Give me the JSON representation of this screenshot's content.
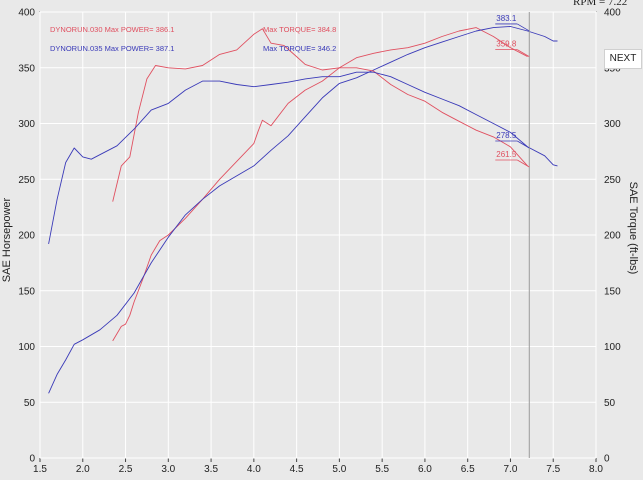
{
  "top_bar": {
    "rpm_readout": "RPM = 7.22"
  },
  "controls": {
    "next_label": "NEXT"
  },
  "colors": {
    "run030": "#e05060",
    "run035": "#3a3ab8",
    "grid": "#ffffff",
    "cursor": "#9a9a9a",
    "background": "#e9e9e9"
  },
  "chart_data": {
    "type": "line",
    "xlabel": "",
    "ylabel_left": "SAE Horsepower",
    "ylabel_right": "SAE Torque (ft-lbs)",
    "xlim": [
      1.5,
      8.0
    ],
    "ylim": [
      0,
      400
    ],
    "x_ticks": [
      "1.5",
      "2.0",
      "2.5",
      "3.0",
      "3.5",
      "4.0",
      "4.5",
      "5.0",
      "5.5",
      "6.0",
      "6.5",
      "7.0",
      "7.5",
      "8.0"
    ],
    "y_ticks_left": [
      "0",
      "50",
      "100",
      "150",
      "200",
      "250",
      "300",
      "350",
      "400"
    ],
    "y_ticks_right": [
      "0",
      "50",
      "100",
      "150",
      "200",
      "250",
      "300",
      "350",
      "400"
    ],
    "grid": true,
    "cursor_x": 7.22,
    "legend_text": {
      "run030_power": "DYNORUN.030  Max POWER= 386.1",
      "run035_power": "DYNORUN.035  Max POWER= 387.1",
      "run030_torque": "Max TORQUE= 384.8",
      "run035_torque": "Max TORQUE= 346.2"
    },
    "cursor_labels": [
      {
        "text": "383.1",
        "x": 7.22,
        "y": 383,
        "series": "run035_power"
      },
      {
        "text": "359.8",
        "x": 7.22,
        "y": 360,
        "series": "run030_power"
      },
      {
        "text": "278.5",
        "x": 7.22,
        "y": 278,
        "series": "run035_torque"
      },
      {
        "text": "261.5",
        "x": 7.22,
        "y": 261,
        "series": "run030_torque"
      }
    ],
    "series": [
      {
        "key": "run030_power",
        "color": "#e05060",
        "x": [
          2.35,
          2.45,
          2.5,
          2.55,
          2.6,
          2.7,
          2.8,
          2.9,
          3.0,
          3.2,
          3.4,
          3.6,
          3.8,
          4.0,
          4.05,
          4.1,
          4.2,
          4.4,
          4.6,
          4.8,
          5.0,
          5.2,
          5.4,
          5.6,
          5.8,
          6.0,
          6.2,
          6.4,
          6.6,
          6.8,
          7.0,
          7.2
        ],
        "y": [
          105,
          118,
          120,
          128,
          140,
          160,
          182,
          195,
          200,
          215,
          232,
          250,
          266,
          282,
          293,
          303,
          298,
          318,
          330,
          338,
          350,
          359,
          363,
          366,
          368,
          372,
          378,
          383,
          386,
          378,
          368,
          360
        ]
      },
      {
        "key": "run035_power",
        "color": "#3a3ab8",
        "x": [
          1.6,
          1.7,
          1.8,
          1.9,
          2.0,
          2.2,
          2.4,
          2.6,
          2.8,
          3.0,
          3.2,
          3.4,
          3.6,
          3.8,
          4.0,
          4.2,
          4.4,
          4.6,
          4.8,
          5.0,
          5.2,
          5.4,
          5.6,
          5.8,
          6.0,
          6.2,
          6.4,
          6.6,
          6.8,
          7.0,
          7.2,
          7.4,
          7.5,
          7.55
        ],
        "y": [
          58,
          75,
          88,
          102,
          106,
          115,
          128,
          148,
          175,
          198,
          218,
          232,
          244,
          253,
          262,
          276,
          289,
          306,
          323,
          336,
          341,
          348,
          355,
          362,
          368,
          373,
          378,
          383,
          386,
          387,
          383,
          378,
          374,
          374
        ]
      },
      {
        "key": "run030_torque",
        "color": "#e05060",
        "x": [
          2.35,
          2.45,
          2.55,
          2.65,
          2.75,
          2.85,
          3.0,
          3.2,
          3.4,
          3.6,
          3.8,
          4.0,
          4.1,
          4.2,
          4.35,
          4.5,
          4.6,
          4.8,
          5.0,
          5.2,
          5.4,
          5.6,
          5.8,
          6.0,
          6.2,
          6.4,
          6.6,
          6.8,
          7.0,
          7.2
        ],
        "y": [
          230,
          262,
          270,
          310,
          340,
          352,
          350,
          349,
          352,
          362,
          366,
          380,
          385,
          372,
          370,
          360,
          353,
          348,
          350,
          350,
          347,
          335,
          326,
          320,
          310,
          302,
          294,
          288,
          279,
          262
        ]
      },
      {
        "key": "run035_torque",
        "color": "#3a3ab8",
        "x": [
          1.6,
          1.7,
          1.8,
          1.9,
          2.0,
          2.1,
          2.2,
          2.4,
          2.6,
          2.8,
          3.0,
          3.2,
          3.4,
          3.6,
          3.8,
          4.0,
          4.2,
          4.4,
          4.6,
          4.8,
          5.0,
          5.2,
          5.4,
          5.6,
          5.8,
          6.0,
          6.2,
          6.4,
          6.6,
          6.8,
          7.0,
          7.2,
          7.4,
          7.5,
          7.55
        ],
        "y": [
          192,
          232,
          265,
          278,
          270,
          268,
          272,
          280,
          295,
          312,
          318,
          330,
          338,
          338,
          335,
          333,
          335,
          337,
          340,
          342,
          342,
          346,
          346,
          342,
          335,
          328,
          322,
          316,
          308,
          300,
          292,
          279,
          271,
          263,
          262
        ]
      }
    ]
  }
}
